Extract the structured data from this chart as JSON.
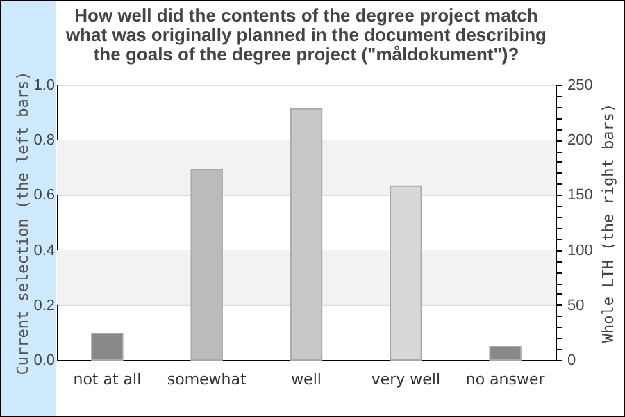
{
  "chart_data": {
    "type": "bar",
    "title": "How well did the contents of the degree project match\nwhat was originally planned in the document describing\nthe goals of the degree project (\"måldokument\")?",
    "categories": [
      "not at all",
      "somewhat",
      "well",
      "very well",
      "no answer"
    ],
    "series": [
      {
        "axis": "y2",
        "values": [
          24,
          173,
          228,
          158,
          12
        ],
        "colors": [
          "#888888",
          "#bbbbbb",
          "#c8c8c8",
          "#d8d8d8",
          "#888888"
        ]
      }
    ],
    "ylabel": "Current selection (the left bars)",
    "y2label": "Whole LTH (the right bars)",
    "ylim": [
      0,
      1
    ],
    "yticks": [
      {
        "value": 0,
        "label": "0.0"
      },
      0.2,
      0.4,
      0.6,
      0.8,
      {
        "value": 1,
        "label": "1.0"
      }
    ],
    "y2lim": [
      0,
      250
    ],
    "y2ticks": [
      0,
      {
        "value": 10,
        "label": null
      },
      {
        "value": 20,
        "label": null
      },
      {
        "value": 30,
        "label": null
      },
      {
        "value": 40,
        "label": null
      },
      50,
      {
        "value": 60,
        "label": null
      },
      {
        "value": 70,
        "label": null
      },
      {
        "value": 80,
        "label": null
      },
      {
        "value": 90,
        "label": null
      },
      100,
      {
        "value": 110,
        "label": null
      },
      {
        "value": 120,
        "label": null
      },
      {
        "value": 130,
        "label": null
      },
      {
        "value": 140,
        "label": null
      },
      150,
      {
        "value": 160,
        "label": null
      },
      {
        "value": 170,
        "label": null
      },
      {
        "value": 180,
        "label": null
      },
      {
        "value": 190,
        "label": null
      },
      200,
      {
        "value": 210,
        "label": null
      },
      {
        "value": 220,
        "label": null
      },
      {
        "value": 230,
        "label": null
      },
      {
        "value": 240,
        "label": null
      },
      250
    ],
    "grid": "y",
    "bands": [
      {
        "axis": "y",
        "from": 0.2,
        "to": 0.4,
        "color": "#f2f2f2"
      },
      {
        "axis": "y",
        "from": 0.6,
        "to": 0.8,
        "color": "#f2f2f2"
      }
    ]
  }
}
